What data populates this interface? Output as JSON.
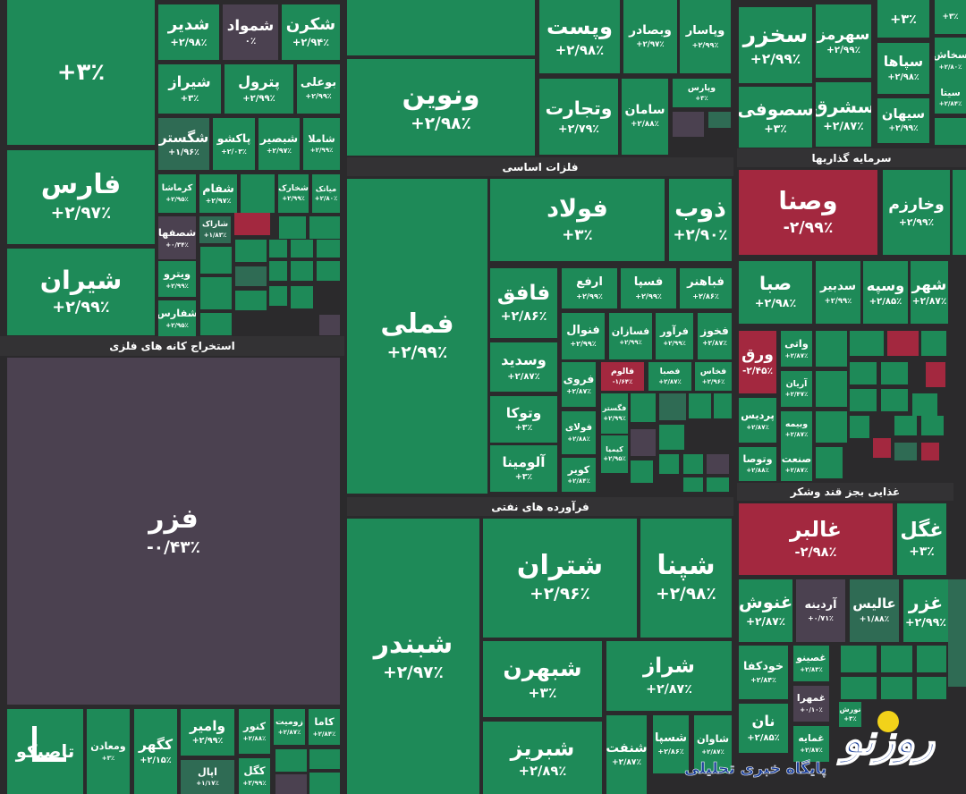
{
  "colors": {
    "up": "#1e8a58",
    "weak": "#2f6b54",
    "flat": "#4b4150",
    "down": "#a3283f",
    "background": "#2b2a2c",
    "header": "#333234"
  },
  "sectors": [
    {
      "label": "استخراج کانه های فلزی"
    },
    {
      "label": "فلزات اساسی"
    },
    {
      "label": "فرآورده های نفتی"
    },
    {
      "label": "سرمایه گذاریها"
    },
    {
      "label": "غذایی بجز قند وشکر"
    }
  ],
  "tiles": [
    {
      "name": "",
      "change": "+۳٪",
      "state": "up"
    },
    {
      "name": "شدیر",
      "change": "+۲/۹۸٪",
      "state": "up"
    },
    {
      "name": "شمواد",
      "change": "۰٪",
      "state": "flat"
    },
    {
      "name": "شکرن",
      "change": "+۲/۹۴٪",
      "state": "up"
    },
    {
      "name": "شیراز",
      "change": "+۳٪",
      "state": "up"
    },
    {
      "name": "پترول",
      "change": "+۲/۹۹٪",
      "state": "up"
    },
    {
      "name": "بوعلی",
      "change": "+۲/۹۹٪",
      "state": "up"
    },
    {
      "name": "شگستر",
      "change": "+۱/۹۶٪",
      "state": "weak"
    },
    {
      "name": "پاکشو",
      "change": "+۲/۰۳٪",
      "state": "up"
    },
    {
      "name": "شبصیر",
      "change": "+۲/۹۷٪",
      "state": "up"
    },
    {
      "name": "شاملا",
      "change": "+۲/۹۹٪",
      "state": "up"
    },
    {
      "name": "کرماشا",
      "change": "+۲/۹۵٪",
      "state": "up"
    },
    {
      "name": "شفام",
      "change": "+۲/۹۷٪",
      "state": "up"
    },
    {
      "name": "",
      "change": "",
      "state": "up"
    },
    {
      "name": "شخارک",
      "change": "+۲/۹۹٪",
      "state": "up"
    },
    {
      "name": "میاتک",
      "change": "+۲/۸۰٪",
      "state": "up"
    },
    {
      "name": "شصفها",
      "change": "+۰/۳۴٪",
      "state": "flat"
    },
    {
      "name": "شاراک",
      "change": "+۱/۸۳٪",
      "state": "weak"
    },
    {
      "name": "",
      "change": "",
      "state": "down"
    },
    {
      "name": "ویترو",
      "change": "+۲/۹۹٪",
      "state": "up"
    },
    {
      "name": "شفارس",
      "change": "+۲/۹۵٪",
      "state": "up"
    },
    {
      "name": "فارس",
      "change": "+۲/۹۷٪",
      "state": "up"
    },
    {
      "name": "شیران",
      "change": "+۲/۹۹٪",
      "state": "up"
    },
    {
      "name": "فزر",
      "change": "-۰/۴۳٪",
      "state": "flat"
    },
    {
      "name": "تاصیکو",
      "change": "",
      "state": "up"
    },
    {
      "name": "ومعادن",
      "change": "+۳٪",
      "state": "up"
    },
    {
      "name": "کگهر",
      "change": "+۲/۱۵٪",
      "state": "up"
    },
    {
      "name": "وامیر",
      "change": "+۲/۹۹٪",
      "state": "up"
    },
    {
      "name": "اپال",
      "change": "+۱/۱۷٪",
      "state": "weak"
    },
    {
      "name": "کنور",
      "change": "+۲/۸۸٪",
      "state": "up"
    },
    {
      "name": "کگل",
      "change": "+۲/۹۹٪",
      "state": "up"
    },
    {
      "name": "زومیت",
      "change": "+۲/۸۷٪",
      "state": "up"
    },
    {
      "name": "کاما",
      "change": "+۲/۸۴٪",
      "state": "up"
    },
    {
      "name": "",
      "change": "",
      "state": "up"
    },
    {
      "name": "ونوین",
      "change": "+۲/۹۸٪",
      "state": "up"
    },
    {
      "name": "وپست",
      "change": "+۲/۹۸٪",
      "state": "up"
    },
    {
      "name": "وبصادر",
      "change": "+۲/۹۷٪",
      "state": "up"
    },
    {
      "name": "وپاسار",
      "change": "+۲/۹۹٪",
      "state": "up"
    },
    {
      "name": "وتجارت",
      "change": "+۲/۷۹٪",
      "state": "up"
    },
    {
      "name": "سامان",
      "change": "+۲/۸۸٪",
      "state": "up"
    },
    {
      "name": "وپارس",
      "change": "+۳٪",
      "state": "up"
    },
    {
      "name": "",
      "change": "",
      "state": "flat"
    },
    {
      "name": "",
      "change": "",
      "state": "weak"
    },
    {
      "name": "فملی",
      "change": "+۲/۹۹٪",
      "state": "up"
    },
    {
      "name": "فولاد",
      "change": "+۳٪",
      "state": "up"
    },
    {
      "name": "ذوب",
      "change": "+۲/۹۰٪",
      "state": "up"
    },
    {
      "name": "فافق",
      "change": "+۲/۸۶٪",
      "state": "up"
    },
    {
      "name": "ارفع",
      "change": "+۲/۹۹٪",
      "state": "up"
    },
    {
      "name": "فسپا",
      "change": "+۲/۹۹٪",
      "state": "up"
    },
    {
      "name": "فباهنر",
      "change": "+۲/۸۶٪",
      "state": "up"
    },
    {
      "name": "وسدید",
      "change": "+۲/۸۷٪",
      "state": "up"
    },
    {
      "name": "فنوال",
      "change": "+۲/۹۹٪",
      "state": "up"
    },
    {
      "name": "فسازان",
      "change": "+۲/۹۹٪",
      "state": "up"
    },
    {
      "name": "فرآور",
      "change": "+۲/۹۹٪",
      "state": "up"
    },
    {
      "name": "فخوز",
      "change": "+۲/۸۷٪",
      "state": "up"
    },
    {
      "name": "وتوکا",
      "change": "+۳٪",
      "state": "up"
    },
    {
      "name": "فروی",
      "change": "+۲/۸۷٪",
      "state": "up"
    },
    {
      "name": "فالوم",
      "change": "-۱/۶۴٪",
      "state": "down"
    },
    {
      "name": "فصبا",
      "change": "+۲/۸۷٪",
      "state": "up"
    },
    {
      "name": "فخاس",
      "change": "+۲/۹۶٪",
      "state": "up"
    },
    {
      "name": "آلومینا",
      "change": "+۳٪",
      "state": "up"
    },
    {
      "name": "فولای",
      "change": "+۲/۸۸٪",
      "state": "up"
    },
    {
      "name": "کویر",
      "change": "+۲/۸۴٪",
      "state": "up"
    },
    {
      "name": "فگستر",
      "change": "+۲/۹۹٪",
      "state": "up"
    },
    {
      "name": "کیمیا",
      "change": "+۲/۹۵٪",
      "state": "up"
    },
    {
      "name": "",
      "change": "",
      "state": "weak"
    },
    {
      "name": "",
      "change": "",
      "state": "flat"
    },
    {
      "name": "شبندر",
      "change": "+۲/۹۷٪",
      "state": "up"
    },
    {
      "name": "شتران",
      "change": "+۲/۹۶٪",
      "state": "up"
    },
    {
      "name": "شپنا",
      "change": "+۲/۹۸٪",
      "state": "up"
    },
    {
      "name": "شبهرن",
      "change": "+۳٪",
      "state": "up"
    },
    {
      "name": "شراز",
      "change": "+۲/۸۷٪",
      "state": "up"
    },
    {
      "name": "شبریز",
      "change": "+۲/۸۹٪",
      "state": "up"
    },
    {
      "name": "شنفت",
      "change": "+۲/۸۷٪",
      "state": "up"
    },
    {
      "name": "شسپا",
      "change": "+۲/۸۶٪",
      "state": "up"
    },
    {
      "name": "شاوان",
      "change": "+۲/۸۷٪",
      "state": "up"
    },
    {
      "name": "سخزر",
      "change": "+۲/۹۹٪",
      "state": "up"
    },
    {
      "name": "سهرمز",
      "change": "+۲/۹۹٪",
      "state": "up"
    },
    {
      "name": "سصوفی",
      "change": "+۳٪",
      "state": "up"
    },
    {
      "name": "سشرق",
      "change": "+۲/۸۷٪",
      "state": "up"
    },
    {
      "name": "",
      "change": "+۳٪",
      "state": "up"
    },
    {
      "name": "سپاها",
      "change": "+۲/۹۸٪",
      "state": "up"
    },
    {
      "name": "سیهان",
      "change": "+۲/۹۹٪",
      "state": "up"
    },
    {
      "name": "",
      "change": "+۳٪",
      "state": "up"
    },
    {
      "name": "سخاش",
      "change": "+۲/۸۰٪",
      "state": "up"
    },
    {
      "name": "سیتا",
      "change": "+۲/۸۴٪",
      "state": "up"
    },
    {
      "name": "وصنا",
      "change": "-۲/۹۹٪",
      "state": "down"
    },
    {
      "name": "وخارزم",
      "change": "+۲/۹۹٪",
      "state": "up"
    },
    {
      "name": "صبا",
      "change": "+۲/۹۸٪",
      "state": "up"
    },
    {
      "name": "سدبیر",
      "change": "+۲/۹۹٪",
      "state": "up"
    },
    {
      "name": "وسپه",
      "change": "+۲/۸۵٪",
      "state": "up"
    },
    {
      "name": "شهر",
      "change": "+۲/۸۷٪",
      "state": "up"
    },
    {
      "name": "ورق",
      "change": "-۲/۴۵٪",
      "state": "down"
    },
    {
      "name": "واتی",
      "change": "+۲/۸۷٪",
      "state": "up"
    },
    {
      "name": "آریان",
      "change": "+۲/۴۷٪",
      "state": "up"
    },
    {
      "name": "پردیس",
      "change": "+۲/۸۷٪",
      "state": "up"
    },
    {
      "name": "وبیمه",
      "change": "+۲/۸۷٪",
      "state": "up"
    },
    {
      "name": "وتوصا",
      "change": "+۲/۸۸٪",
      "state": "up"
    },
    {
      "name": "صنعت",
      "change": "+۲/۸۷٪",
      "state": "up"
    },
    {
      "name": "",
      "change": "",
      "state": "down"
    },
    {
      "name": "",
      "change": "",
      "state": "down"
    },
    {
      "name": "",
      "change": "",
      "state": "down"
    },
    {
      "name": "غالبر",
      "change": "-۲/۹۸٪",
      "state": "down"
    },
    {
      "name": "غگل",
      "change": "+۳٪",
      "state": "up"
    },
    {
      "name": "غنوش",
      "change": "+۲/۸۷٪",
      "state": "up"
    },
    {
      "name": "آردینه",
      "change": "+۰/۷۱٪",
      "state": "flat"
    },
    {
      "name": "عالیس",
      "change": "+۱/۸۸٪",
      "state": "weak"
    },
    {
      "name": "غزر",
      "change": "+۲/۹۹٪",
      "state": "up"
    },
    {
      "name": "خودکفا",
      "change": "+۲/۸۴٪",
      "state": "up"
    },
    {
      "name": "غصینو",
      "change": "+۲/۸۳٪",
      "state": "up"
    },
    {
      "name": "غمهرا",
      "change": "+۰/۱۰٪",
      "state": "flat"
    },
    {
      "name": "نان",
      "change": "+۲/۸۵٪",
      "state": "up"
    },
    {
      "name": "غمایه",
      "change": "+۲/۸۷٪",
      "state": "up"
    },
    {
      "name": "نورش",
      "change": "+۳٪",
      "state": "up"
    }
  ],
  "watermark": {
    "logo": "روزنو",
    "subtitle": "پایگاه خبری تحلیلی"
  }
}
